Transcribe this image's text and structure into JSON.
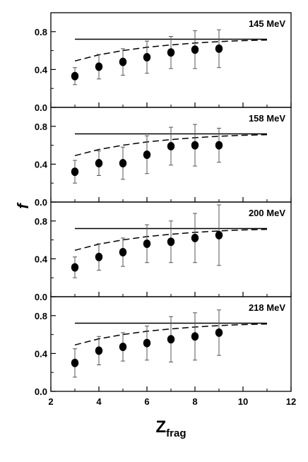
{
  "chart_data": {
    "type": "scatter",
    "xlabel": "Z",
    "xlabel_sub": "frag",
    "ylabel": "f",
    "xlim": [
      2,
      12
    ],
    "ylim": [
      0.0,
      1.0
    ],
    "x_ticks": [
      2,
      4,
      6,
      8,
      10,
      12
    ],
    "y_ticks": [
      0.0,
      0.4,
      0.8
    ],
    "y_tick_labels": [
      "0.0",
      "0.4",
      "0.8"
    ],
    "panels": [
      {
        "label": "145 MeV",
        "points": [
          {
            "x": 3,
            "y": 0.33,
            "err": 0.09
          },
          {
            "x": 4,
            "y": 0.43,
            "err": 0.13
          },
          {
            "x": 5,
            "y": 0.48,
            "err": 0.14
          },
          {
            "x": 6,
            "y": 0.53,
            "err": 0.17
          },
          {
            "x": 7,
            "y": 0.58,
            "err": 0.17
          },
          {
            "x": 8,
            "y": 0.61,
            "err": 0.2
          },
          {
            "x": 9,
            "y": 0.62,
            "err": 0.2
          }
        ],
        "solid_line": {
          "x": [
            3,
            11
          ],
          "y": 0.72
        },
        "dashed_curve": {
          "x": [
            3,
            4,
            5,
            6,
            7,
            8,
            9,
            10,
            11
          ],
          "y": [
            0.49,
            0.555,
            0.6,
            0.635,
            0.66,
            0.68,
            0.695,
            0.705,
            0.712
          ]
        }
      },
      {
        "label": "158 MeV",
        "points": [
          {
            "x": 3,
            "y": 0.32,
            "err": 0.12
          },
          {
            "x": 4,
            "y": 0.41,
            "err": 0.13
          },
          {
            "x": 5,
            "y": 0.41,
            "err": 0.17
          },
          {
            "x": 6,
            "y": 0.5,
            "err": 0.2
          },
          {
            "x": 7,
            "y": 0.59,
            "err": 0.2
          },
          {
            "x": 8,
            "y": 0.6,
            "err": 0.22
          },
          {
            "x": 9,
            "y": 0.6,
            "err": 0.18
          }
        ],
        "solid_line": {
          "x": [
            3,
            11
          ],
          "y": 0.72
        },
        "dashed_curve": {
          "x": [
            3,
            4,
            5,
            6,
            7,
            8,
            9,
            10,
            11
          ],
          "y": [
            0.49,
            0.555,
            0.6,
            0.635,
            0.66,
            0.68,
            0.695,
            0.705,
            0.712
          ]
        }
      },
      {
        "label": "200 MeV",
        "points": [
          {
            "x": 3,
            "y": 0.31,
            "err": 0.11
          },
          {
            "x": 4,
            "y": 0.42,
            "err": 0.14
          },
          {
            "x": 5,
            "y": 0.47,
            "err": 0.15
          },
          {
            "x": 6,
            "y": 0.56,
            "err": 0.2
          },
          {
            "x": 7,
            "y": 0.58,
            "err": 0.22
          },
          {
            "x": 8,
            "y": 0.62,
            "err": 0.26
          },
          {
            "x": 9,
            "y": 0.65,
            "err": 0.32
          }
        ],
        "solid_line": {
          "x": [
            3,
            11
          ],
          "y": 0.72
        },
        "dashed_curve": {
          "x": [
            3,
            4,
            5,
            6,
            7,
            8,
            9,
            10,
            11
          ],
          "y": [
            0.49,
            0.555,
            0.6,
            0.635,
            0.66,
            0.68,
            0.695,
            0.705,
            0.712
          ]
        }
      },
      {
        "label": "218 MeV",
        "points": [
          {
            "x": 3,
            "y": 0.3,
            "err": 0.15
          },
          {
            "x": 4,
            "y": 0.43,
            "err": 0.15
          },
          {
            "x": 5,
            "y": 0.47,
            "err": 0.15
          },
          {
            "x": 6,
            "y": 0.51,
            "err": 0.18
          },
          {
            "x": 7,
            "y": 0.55,
            "err": 0.24
          },
          {
            "x": 8,
            "y": 0.58,
            "err": 0.25
          },
          {
            "x": 9,
            "y": 0.62,
            "err": 0.24
          }
        ],
        "solid_line": {
          "x": [
            3,
            11
          ],
          "y": 0.72
        },
        "dashed_curve": {
          "x": [
            3,
            4,
            5,
            6,
            7,
            8,
            9,
            10,
            11
          ],
          "y": [
            0.49,
            0.555,
            0.6,
            0.635,
            0.66,
            0.68,
            0.695,
            0.705,
            0.712
          ]
        }
      }
    ]
  }
}
